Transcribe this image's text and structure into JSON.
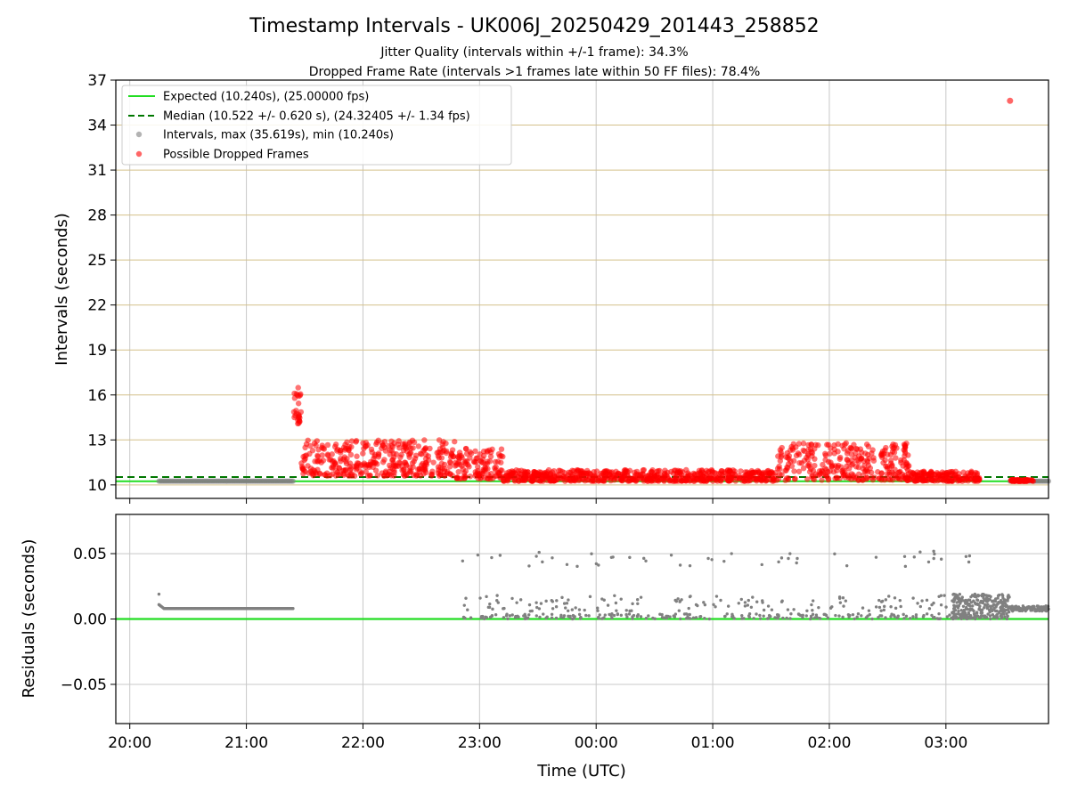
{
  "figure": {
    "title": "Timestamp Intervals - UK006J_20250429_201443_258852",
    "subtitle_1": "Jitter Quality (intervals within +/-1 frame): 34.3%",
    "subtitle_2": "Dropped Frame Rate (intervals >1 frames late within 50 FF files): 78.4%",
    "xlabel": "Time (UTC)"
  },
  "chart_data": [
    {
      "type": "scatter",
      "panel": "intervals",
      "ylabel": "Intervals (seconds)",
      "x_unit": "hours since 20:00 UTC",
      "xlim": [
        -0.12,
        7.88
      ],
      "ylim": [
        9.1,
        37
      ],
      "yticks": [
        10,
        13,
        16,
        19,
        22,
        25,
        28,
        31,
        34,
        37
      ],
      "grid": true,
      "legend_position": "upper-left",
      "legend": [
        "Expected (10.240s), (25.00000 fps)",
        "Median (10.522 +/- 0.620 s), (24.32405 +/- 1.34 fps)",
        "Intervals, max (35.619s), min (10.240s)",
        "Possible Dropped Frames"
      ],
      "expected_line": 10.24,
      "median_line": 10.522,
      "normal_segments": [
        {
          "x_start": 0.25,
          "x_end": 1.4,
          "y": 10.25
        },
        {
          "x_start": 7.55,
          "x_end": 7.88,
          "y": 10.25
        }
      ],
      "dropped_clusters": [
        {
          "x_start": 1.4,
          "x_end": 1.47,
          "y_min": 14.0,
          "y_max": 16.5
        },
        {
          "x_start": 1.47,
          "x_end": 2.8,
          "y_min": 10.6,
          "y_max": 13.0
        },
        {
          "x_start": 2.8,
          "x_end": 3.2,
          "y_min": 10.4,
          "y_max": 12.5
        },
        {
          "x_start": 3.2,
          "x_end": 5.55,
          "y_min": 10.25,
          "y_max": 11.0
        },
        {
          "x_start": 5.55,
          "x_end": 6.7,
          "y_min": 10.3,
          "y_max": 12.8
        },
        {
          "x_start": 6.7,
          "x_end": 7.3,
          "y_min": 10.25,
          "y_max": 10.9
        },
        {
          "x_start": 7.55,
          "x_end": 7.75,
          "y_min": 10.24,
          "y_max": 10.35
        }
      ],
      "outlier": {
        "x": 7.55,
        "y": 35.619
      },
      "max_interval": 35.619,
      "min_interval": 10.24
    },
    {
      "type": "scatter",
      "panel": "residuals",
      "ylabel": "Residuals (seconds)",
      "x_unit": "hours since 20:00 UTC",
      "xlim": [
        -0.12,
        7.88
      ],
      "ylim": [
        -0.08,
        0.08
      ],
      "yticks": [
        -0.05,
        0.0,
        0.05
      ],
      "ytick_labels": [
        "−0.05",
        "0.00",
        "0.05"
      ],
      "grid": true,
      "zero_line": 0.0,
      "xticks": [
        0,
        1,
        2,
        3,
        4,
        5,
        6,
        7
      ],
      "xtick_labels": [
        "20:00",
        "21:00",
        "22:00",
        "23:00",
        "00:00",
        "01:00",
        "02:00",
        "03:00"
      ]
    }
  ],
  "colors": {
    "expected": "#22dd22",
    "median": "#007700",
    "interval": "#808080",
    "dropped": "#ff0000",
    "hgrid": "#d4c08a",
    "grid": "#c8c8c8"
  }
}
